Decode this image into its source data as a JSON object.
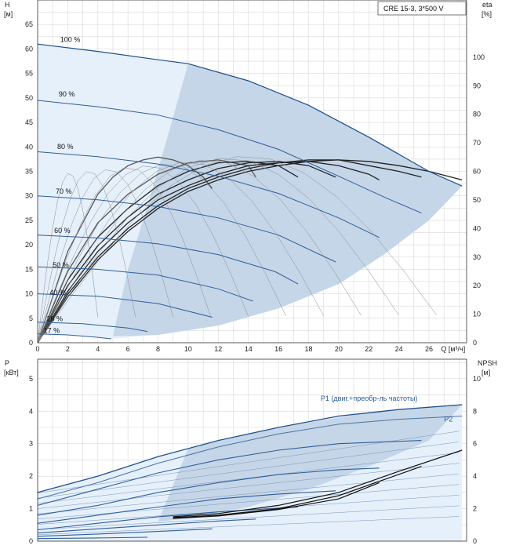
{
  "title_box": "CRE 15-3, 3*500 V",
  "chart_data": [
    {
      "type": "line",
      "panel": "head",
      "left_axis_label": "H",
      "left_axis_unit": "[м]",
      "right_axis_label": "eta",
      "right_axis_unit": "[%]",
      "xlabel": "Q [м³/ч]",
      "xlim": [
        0,
        28.5
      ],
      "ylim": [
        0,
        70
      ],
      "y2lim": [
        0,
        120
      ],
      "x_ticks": [
        "0",
        "2",
        "4",
        "6",
        "8",
        "10",
        "12",
        "14",
        "16",
        "18",
        "20",
        "22",
        "24",
        "26"
      ],
      "y_ticks": [
        "0",
        "5",
        "10",
        "15",
        "20",
        "25",
        "30",
        "35",
        "40",
        "45",
        "50",
        "55",
        "60",
        "65"
      ],
      "y2_ticks": [
        "0",
        "10",
        "20",
        "30",
        "40",
        "50",
        "60",
        "70",
        "80",
        "90",
        "100"
      ],
      "grid": true,
      "speed_curves": [
        {
          "label": "100 %",
          "label_at": [
            1.5,
            61.4
          ],
          "x": [
            0,
            4,
            8,
            10,
            14,
            18,
            22,
            26,
            28.2
          ],
          "y": [
            61,
            59.5,
            57.8,
            57,
            53.5,
            48.5,
            42,
            35,
            32
          ]
        },
        {
          "label": "90 %",
          "label_at": [
            1.4,
            50.3
          ],
          "x": [
            0,
            4,
            8,
            12,
            16,
            20,
            23.2,
            25.5
          ],
          "y": [
            49.5,
            48.2,
            46.5,
            43.5,
            39.5,
            34,
            29.5,
            26.5
          ]
        },
        {
          "label": "80 %",
          "label_at": [
            1.3,
            39.6
          ],
          "x": [
            0,
            4,
            8,
            12,
            16,
            20,
            22.7
          ],
          "y": [
            39,
            38,
            36.5,
            34,
            30.5,
            25.5,
            21.5
          ]
        },
        {
          "label": "70 %",
          "label_at": [
            1.2,
            30.4
          ],
          "x": [
            0,
            4,
            8,
            12,
            16,
            19.8
          ],
          "y": [
            30,
            29.2,
            27.8,
            25.5,
            22,
            16.5
          ]
        },
        {
          "label": "60 %",
          "label_at": [
            1.1,
            22.4
          ],
          "x": [
            0,
            4,
            8,
            12,
            15.8,
            17.3
          ],
          "y": [
            22,
            21.4,
            20.2,
            18,
            14.5,
            12
          ]
        },
        {
          "label": "50 %",
          "label_at": [
            1,
            15.4
          ],
          "x": [
            0,
            4,
            8,
            12,
            14.3
          ],
          "y": [
            15.5,
            15,
            13.8,
            11,
            8.5
          ]
        },
        {
          "label": "40 %",
          "label_at": [
            0.8,
            9.8
          ],
          "x": [
            0,
            4,
            8,
            11.6
          ],
          "y": [
            10,
            9.5,
            8,
            5.2
          ]
        },
        {
          "label": "26 %",
          "label_at": [
            0.6,
            4.4
          ],
          "x": [
            0,
            3,
            6,
            7.3
          ],
          "y": [
            4.2,
            3.9,
            3,
            2.3
          ]
        },
        {
          "label": "17 %",
          "label_at": [
            0.4,
            2
          ],
          "x": [
            0,
            2,
            4,
            4.9
          ],
          "y": [
            1.8,
            1.6,
            1.1,
            0.8
          ]
        }
      ],
      "efficiency_curves": [
        {
          "x": [
            0,
            2,
            4,
            5,
            6,
            7,
            8,
            9,
            10,
            11,
            11.6
          ],
          "y": [
            0,
            32,
            52,
            58,
            62,
            64,
            65,
            64,
            62,
            58,
            54
          ]
        },
        {
          "x": [
            0,
            2,
            4,
            6,
            8,
            10,
            12,
            14,
            14.5
          ],
          "y": [
            0,
            25,
            42,
            52,
            59,
            63,
            64,
            62,
            58
          ]
        },
        {
          "x": [
            0,
            2,
            4,
            6,
            8,
            10,
            12,
            14,
            16,
            17.3
          ],
          "y": [
            0,
            22,
            37,
            47,
            55,
            60,
            63,
            63.5,
            62,
            58
          ]
        },
        {
          "x": [
            0,
            2,
            4,
            6,
            8,
            10,
            12,
            14,
            16,
            18,
            19.8
          ],
          "y": [
            0,
            20,
            34,
            44,
            52,
            57,
            61,
            63,
            63.5,
            62,
            58
          ]
        },
        {
          "x": [
            0,
            2,
            4,
            6,
            8,
            10,
            12,
            14,
            16,
            18,
            20,
            22,
            22.7
          ],
          "y": [
            0,
            18,
            32,
            42,
            50,
            55,
            59,
            62,
            63,
            63.5,
            62,
            59,
            57
          ]
        },
        {
          "x": [
            0,
            2,
            4,
            6,
            8,
            10,
            12,
            14,
            16,
            18,
            20,
            22,
            24,
            25.5
          ],
          "y": [
            0,
            17,
            30,
            40,
            48,
            54,
            58,
            61,
            63,
            64,
            64,
            62,
            60,
            58
          ]
        },
        {
          "x": [
            0,
            2,
            4,
            6,
            8,
            10,
            12,
            14,
            16,
            18,
            20,
            22,
            24,
            26,
            28.2
          ],
          "y": [
            0,
            16,
            29,
            39,
            47,
            53,
            57,
            60,
            62,
            63.5,
            64,
            63.5,
            62,
            60,
            57
          ]
        }
      ]
    },
    {
      "type": "line",
      "panel": "power",
      "left_axis_label": "P",
      "left_axis_unit": "[кВт]",
      "right_axis_label": "NPSH",
      "right_axis_unit": "[м]",
      "xlim": [
        0,
        28.5
      ],
      "ylim": [
        0,
        5.6
      ],
      "y2lim": [
        0,
        11.2
      ],
      "y_ticks": [
        "0",
        "1",
        "2",
        "3",
        "4",
        "5"
      ],
      "y2_ticks": [
        "0",
        "2",
        "4",
        "6",
        "8",
        "10"
      ],
      "grid": true,
      "legend_p1": "P1 (двиг.+преобр-ль частоты)",
      "legend_p2": "P2",
      "p1_curve": {
        "x": [
          0,
          4,
          8,
          12,
          16,
          20,
          24,
          28.2
        ],
        "y": [
          1.5,
          2.0,
          2.6,
          3.1,
          3.5,
          3.85,
          4.05,
          4.2
        ]
      },
      "p2_curve": {
        "x": [
          0,
          4,
          8,
          12,
          16,
          20,
          24,
          28.2
        ],
        "y": [
          1.3,
          1.8,
          2.4,
          2.9,
          3.3,
          3.6,
          3.75,
          3.85
        ]
      },
      "power_curves": [
        {
          "x": [
            0,
            4,
            8,
            12,
            16,
            20,
            25.5
          ],
          "y": [
            1.1,
            1.6,
            2.1,
            2.5,
            2.8,
            3.0,
            3.1
          ]
        },
        {
          "x": [
            0,
            4,
            8,
            12,
            16,
            20,
            22.7
          ],
          "y": [
            0.8,
            1.1,
            1.5,
            1.8,
            2.05,
            2.2,
            2.25
          ]
        },
        {
          "x": [
            0,
            4,
            8,
            12,
            16,
            19.8
          ],
          "y": [
            0.55,
            0.8,
            1.05,
            1.3,
            1.45,
            1.55
          ]
        },
        {
          "x": [
            0,
            4,
            8,
            12,
            17.3
          ],
          "y": [
            0.35,
            0.55,
            0.75,
            0.9,
            1.05
          ]
        },
        {
          "x": [
            0,
            4,
            8,
            12,
            14.5
          ],
          "y": [
            0.25,
            0.38,
            0.5,
            0.62,
            0.68
          ]
        },
        {
          "x": [
            0,
            4,
            8,
            11.6
          ],
          "y": [
            0.15,
            0.22,
            0.3,
            0.38
          ]
        },
        {
          "x": [
            0,
            4,
            7.3
          ],
          "y": [
            0.08,
            0.1,
            0.12
          ]
        }
      ],
      "npsh_curves": [
        {
          "x": [
            9,
            12,
            16,
            20,
            24,
            28.2
          ],
          "y": [
            1.5,
            1.7,
            2.2,
            3.0,
            4.3,
            5.6
          ]
        },
        {
          "x": [
            9,
            12,
            16,
            20,
            25.5
          ],
          "y": [
            1.45,
            1.6,
            2.0,
            2.8,
            4.6
          ]
        },
        {
          "x": [
            9,
            12,
            16,
            20,
            22.7
          ],
          "y": [
            1.4,
            1.55,
            1.95,
            2.6,
            3.6
          ]
        }
      ]
    }
  ]
}
